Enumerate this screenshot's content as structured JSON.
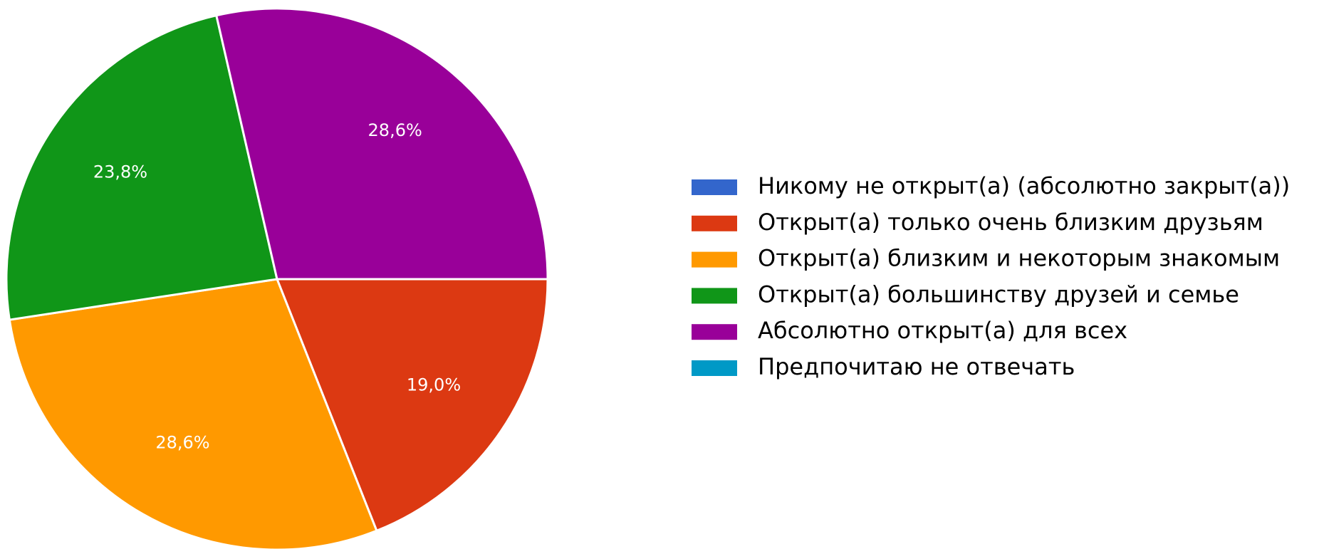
{
  "chart_data": {
    "type": "pie",
    "categories": [
      "Никому не открыт(а) (абсолютно закрыт(а))",
      "Открыт(а) только очень близким друзьям",
      "Открыт(а) близким и некоторым знакомым",
      "Открыт(а) большинству друзей и семье",
      "Абсолютно открыт(а) для всех",
      "Предпочитаю не отвечать"
    ],
    "values": [
      0,
      19.0,
      28.6,
      23.8,
      28.6,
      0
    ],
    "value_labels": [
      null,
      "19,0%",
      "28,6%",
      "23,8%",
      "28,6%",
      null
    ],
    "colors": [
      "#3366cc",
      "#dc3912",
      "#ff9900",
      "#109618",
      "#990099",
      "#0099c6"
    ],
    "legend": "right"
  }
}
